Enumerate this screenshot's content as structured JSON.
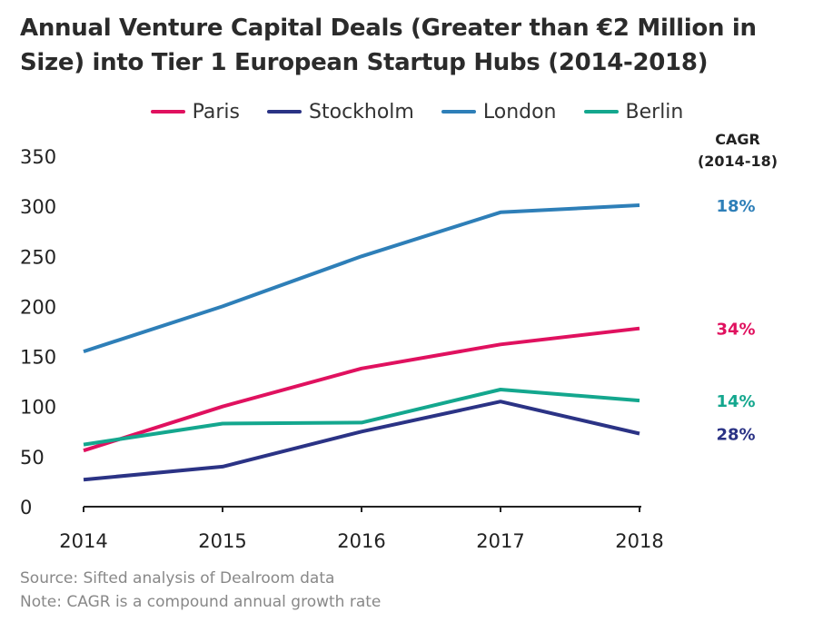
{
  "title_line1": "Annual Venture Capital Deals (Greater than €2 Million in",
  "title_line2": "Size) into Tier 1 European Startup Hubs (2014-2018)",
  "cagr_header_line1": "CAGR",
  "cagr_header_line2": "(2014-18)",
  "source": "Source: Sifted analysis of Dealroom data",
  "note": "Note: CAGR is a compound annual growth rate",
  "chart_data": {
    "type": "line",
    "title": "Annual Venture Capital Deals (Greater than €2 Million in Size) into Tier 1 European Startup Hubs (2014-2018)",
    "xlabel": "",
    "ylabel": "",
    "x": [
      "2014",
      "2015",
      "2016",
      "2017",
      "2018"
    ],
    "ylim": [
      0,
      350
    ],
    "yticks": [
      "0",
      "50",
      "100",
      "150",
      "200",
      "250",
      "300",
      "350"
    ],
    "grid": false,
    "legend_position": "top-center",
    "series": [
      {
        "name": "Paris",
        "color": "#e0115f",
        "values": [
          56,
          100,
          138,
          162,
          178
        ],
        "cagr": "34%"
      },
      {
        "name": "Stockholm",
        "color": "#2b3385",
        "values": [
          27,
          40,
          75,
          105,
          73
        ],
        "cagr": "28%"
      },
      {
        "name": "London",
        "color": "#2e7fb8",
        "values": [
          155,
          200,
          250,
          294,
          301
        ],
        "cagr": "18%"
      },
      {
        "name": "Berlin",
        "color": "#14a78e",
        "values": [
          62,
          83,
          84,
          117,
          106
        ],
        "cagr": "14%"
      }
    ]
  }
}
